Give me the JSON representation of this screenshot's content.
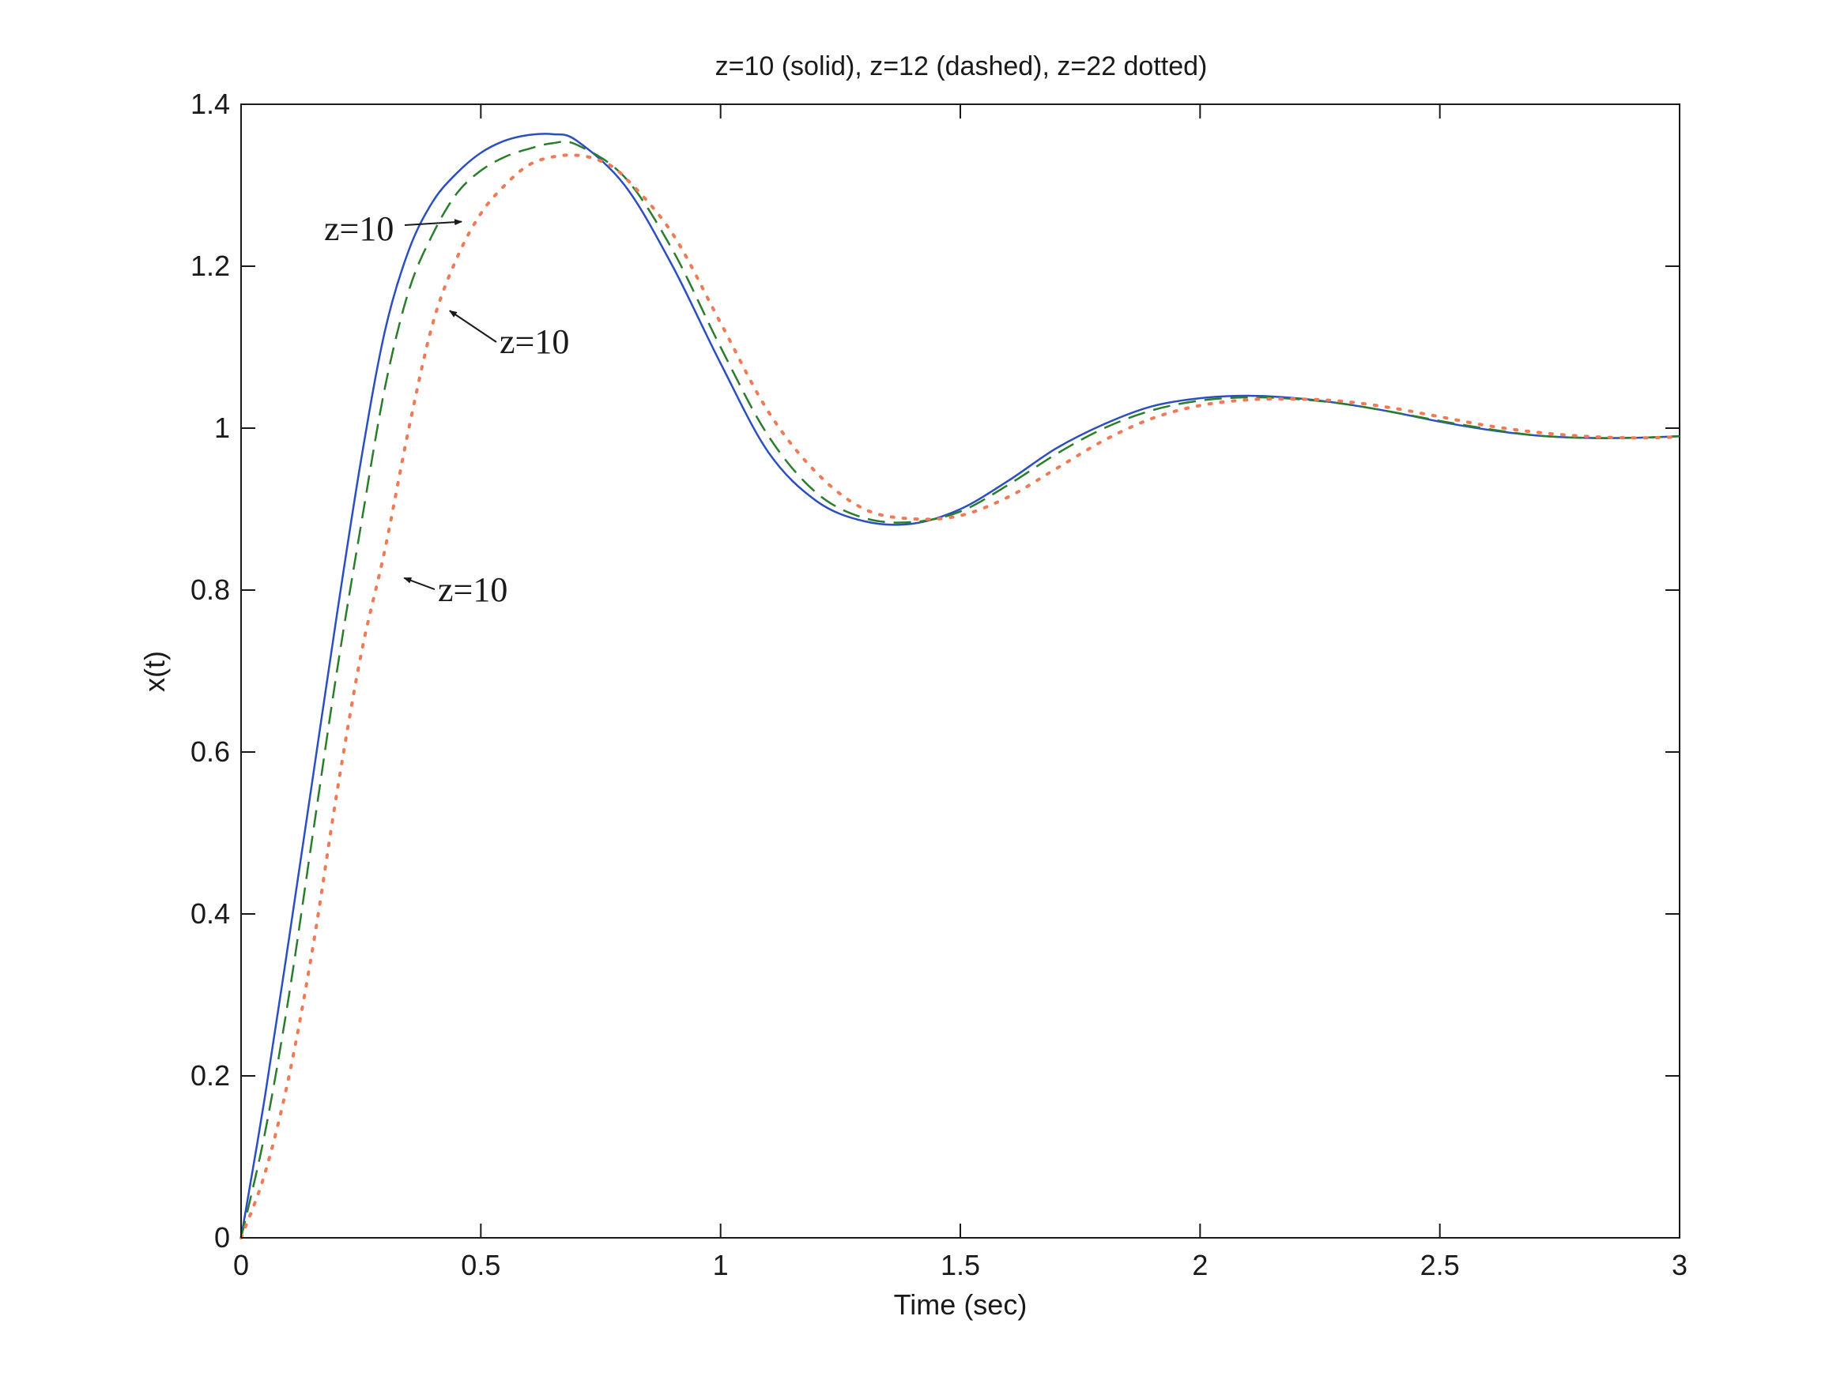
{
  "chart_data": {
    "type": "line",
    "title": "z=10 (solid), z=12 (dashed), z=22 dotted)",
    "xlabel": "Time (sec)",
    "ylabel": "x(t)",
    "xlim": [
      0,
      3
    ],
    "ylim": [
      0,
      1.4
    ],
    "xticks": [
      0,
      0.5,
      1,
      1.5,
      2,
      2.5,
      3
    ],
    "xtick_labels": [
      "0",
      "0.5",
      "1",
      "1.5",
      "2",
      "2.5",
      "3"
    ],
    "yticks": [
      0,
      0.2,
      0.4,
      0.6,
      0.8,
      1.0,
      1.2,
      1.4
    ],
    "ytick_labels": [
      "0",
      "0.2",
      "0.4",
      "0.6",
      "0.8",
      "1",
      "1.2",
      "1.4"
    ],
    "grid": false,
    "legend": "none",
    "series": [
      {
        "style": "solid",
        "color": "#2b4fc1",
        "x": [
          0,
          0.05,
          0.1,
          0.15,
          0.2,
          0.25,
          0.3,
          0.35,
          0.4,
          0.45,
          0.5,
          0.55,
          0.6,
          0.65,
          0.7,
          0.8,
          0.9,
          1.0,
          1.1,
          1.2,
          1.3,
          1.4,
          1.5,
          1.6,
          1.7,
          1.8,
          1.9,
          2.0,
          2.1,
          2.2,
          2.3,
          2.4,
          2.5,
          2.6,
          2.7,
          2.8,
          2.9,
          3.0
        ],
        "y": [
          0,
          0.175,
          0.37,
          0.57,
          0.77,
          0.96,
          1.12,
          1.22,
          1.28,
          1.315,
          1.34,
          1.355,
          1.362,
          1.363,
          1.355,
          1.3,
          1.2,
          1.08,
          0.97,
          0.91,
          0.885,
          0.882,
          0.9,
          0.935,
          0.975,
          1.005,
          1.027,
          1.037,
          1.04,
          1.037,
          1.03,
          1.02,
          1.008,
          0.998,
          0.991,
          0.988,
          0.988,
          0.99
        ]
      },
      {
        "style": "dashed",
        "color": "#2a7d2a",
        "x": [
          0,
          0.05,
          0.1,
          0.15,
          0.2,
          0.25,
          0.3,
          0.35,
          0.4,
          0.45,
          0.5,
          0.55,
          0.6,
          0.65,
          0.7,
          0.8,
          0.9,
          1.0,
          1.1,
          1.2,
          1.3,
          1.4,
          1.5,
          1.6,
          1.7,
          1.8,
          1.9,
          2.0,
          2.1,
          2.2,
          2.3,
          2.4,
          2.5,
          2.6,
          2.7,
          2.8,
          2.9,
          3.0
        ],
        "y": [
          0,
          0.13,
          0.3,
          0.5,
          0.7,
          0.88,
          1.05,
          1.17,
          1.24,
          1.29,
          1.318,
          1.335,
          1.345,
          1.352,
          1.35,
          1.31,
          1.22,
          1.1,
          0.99,
          0.92,
          0.889,
          0.884,
          0.897,
          0.93,
          0.968,
          1.0,
          1.022,
          1.034,
          1.038,
          1.036,
          1.03,
          1.02,
          1.009,
          0.999,
          0.991,
          0.988,
          0.988,
          0.99
        ]
      },
      {
        "style": "dotted",
        "color": "#f07a55",
        "x": [
          0,
          0.05,
          0.1,
          0.15,
          0.2,
          0.25,
          0.3,
          0.35,
          0.4,
          0.45,
          0.5,
          0.55,
          0.6,
          0.65,
          0.7,
          0.75,
          0.8,
          0.9,
          1.0,
          1.1,
          1.2,
          1.3,
          1.4,
          1.5,
          1.6,
          1.7,
          1.8,
          1.9,
          2.0,
          2.1,
          2.2,
          2.3,
          2.4,
          2.5,
          2.6,
          2.7,
          2.8,
          2.9,
          3.0
        ],
        "y": [
          0,
          0.08,
          0.2,
          0.36,
          0.55,
          0.72,
          0.85,
          1.0,
          1.13,
          1.21,
          1.265,
          1.3,
          1.325,
          1.335,
          1.337,
          1.33,
          1.31,
          1.24,
          1.13,
          1.02,
          0.945,
          0.9,
          0.888,
          0.892,
          0.915,
          0.95,
          0.985,
          1.012,
          1.028,
          1.035,
          1.036,
          1.033,
          1.025,
          1.014,
          1.003,
          0.995,
          0.99,
          0.988,
          0.989
        ]
      }
    ],
    "annotations": [
      {
        "text": "z=10",
        "arrow_to": [
          0.46,
          1.255
        ]
      },
      {
        "text": "z=10",
        "arrow_to": [
          0.435,
          1.145
        ]
      },
      {
        "text": "z=10",
        "arrow_to": [
          0.34,
          0.815
        ]
      }
    ]
  }
}
